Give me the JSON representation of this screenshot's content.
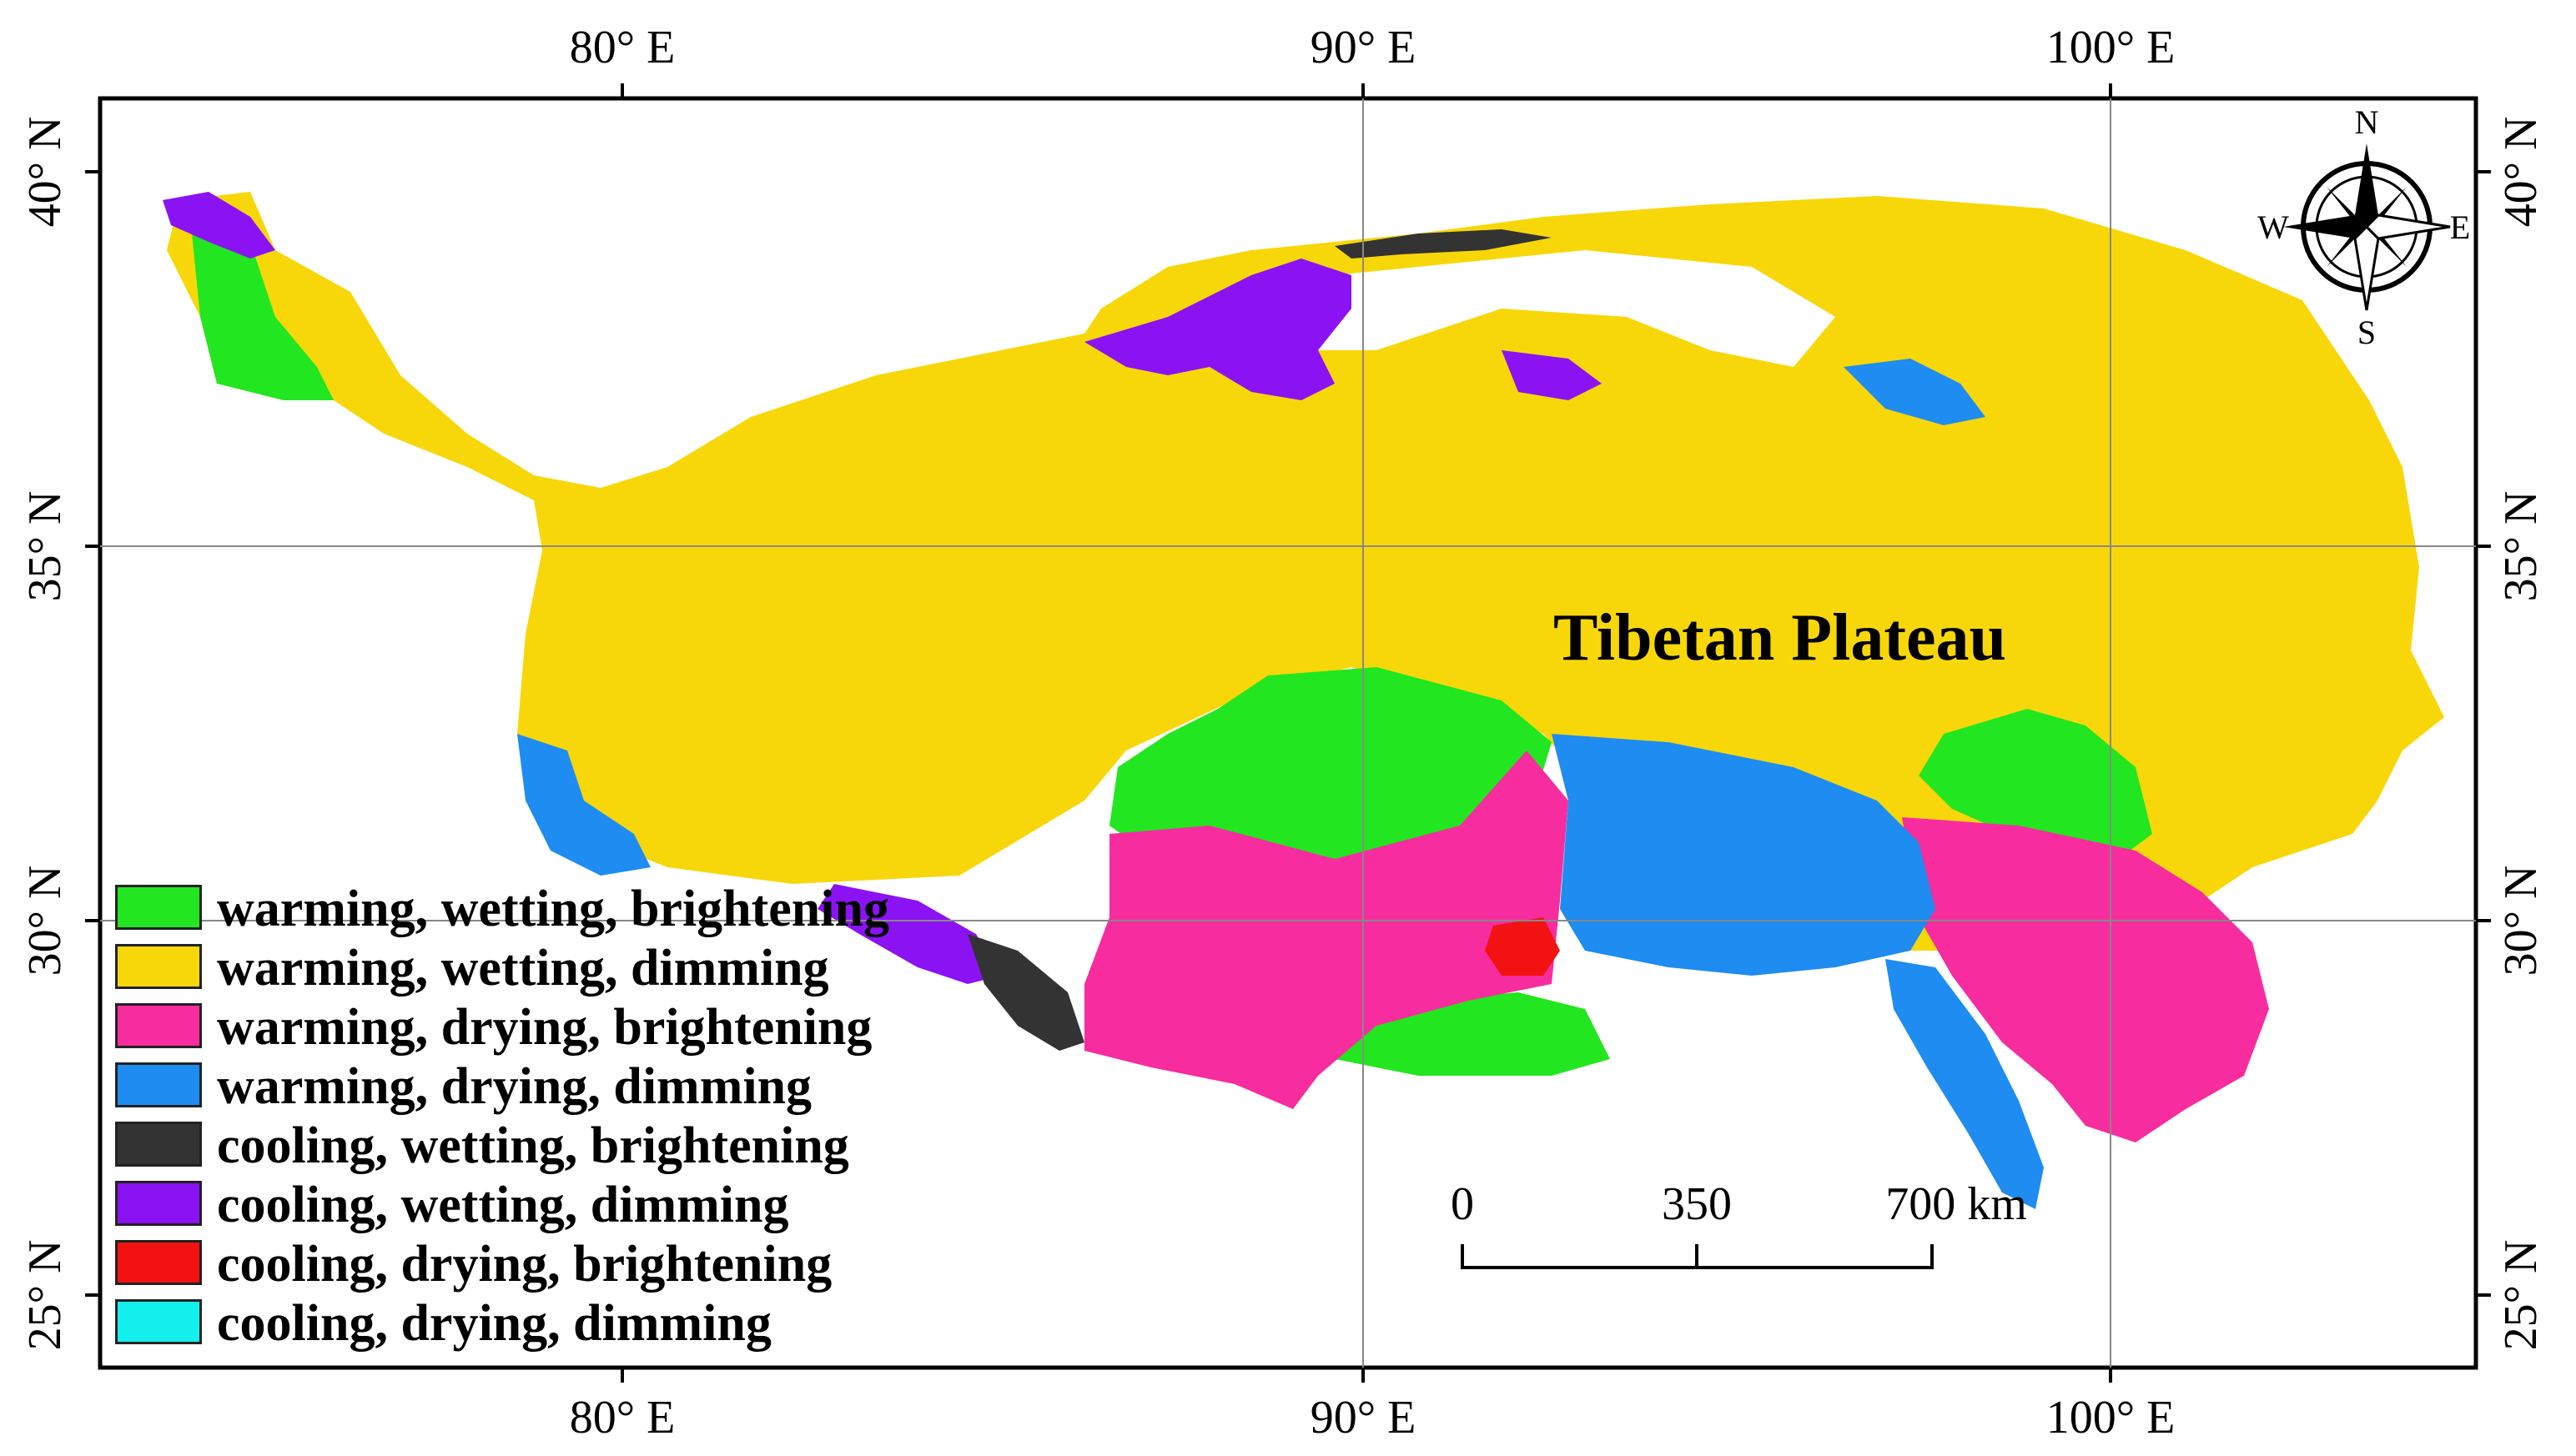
{
  "map": {
    "title": "Tibetan Plateau",
    "colors": {
      "warming_wetting_brightening": "#22e61f",
      "warming_wetting_dimming": "#f8d70a",
      "warming_drying_brightening": "#f72c9e",
      "warming_drying_dimming": "#1e8cf0",
      "cooling_wetting_brightening": "#333333",
      "cooling_wetting_dimming": "#8b12f3",
      "cooling_drying_brightening": "#f21212",
      "cooling_drying_dimming": "#14f0ee",
      "frame": "#000000",
      "grid": "#888888"
    }
  },
  "axes": {
    "top": [
      "80° E",
      "90° E",
      "100° E"
    ],
    "bottom": [
      "80° E",
      "90° E",
      "100° E"
    ],
    "left": [
      "40° N",
      "35° N",
      "30° N",
      "25° N"
    ],
    "right": [
      "40° N",
      "35° N",
      "30° N",
      "25° N"
    ]
  },
  "legend": [
    {
      "label": "warming, wetting, brightening",
      "color": "#22e61f"
    },
    {
      "label": "warming, wetting, dimming",
      "color": "#f8d70a"
    },
    {
      "label": "warming, drying, brightening",
      "color": "#f72c9e"
    },
    {
      "label": "warming, drying, dimming",
      "color": "#1e8cf0"
    },
    {
      "label": "cooling, wetting, brightening",
      "color": "#333333"
    },
    {
      "label": "cooling, wetting, dimming",
      "color": "#8b12f3"
    },
    {
      "label": "cooling, drying, brightening",
      "color": "#f21212"
    },
    {
      "label": "cooling, drying, dimming",
      "color": "#14f0ee"
    }
  ],
  "scale_bar": {
    "labels": [
      "0",
      "350",
      "700 km"
    ]
  },
  "compass": {
    "n": "N",
    "s": "S",
    "e": "E",
    "w": "W"
  }
}
